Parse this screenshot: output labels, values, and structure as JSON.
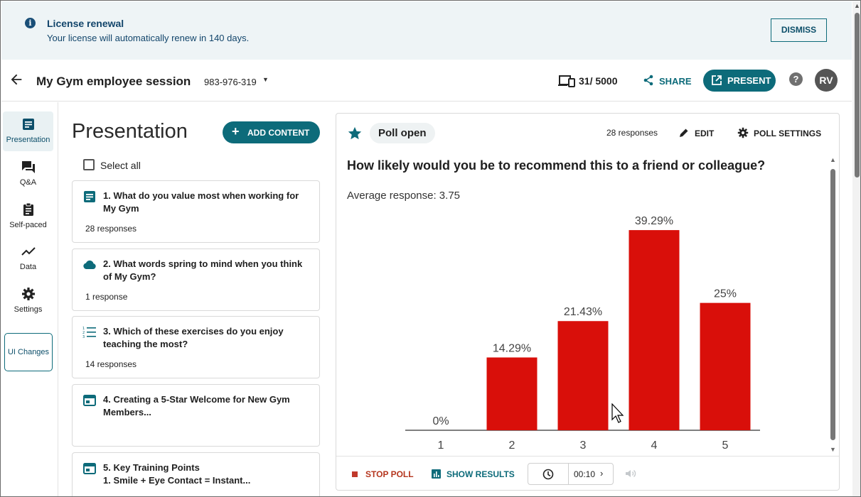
{
  "banner": {
    "title": "License renewal",
    "text": "Your license will automatically renew in 140 days.",
    "dismiss_label": "DISMISS",
    "icon": "info-icon"
  },
  "header": {
    "title": "My Gym employee session",
    "session_code": "983-976-319",
    "participants": "31/ 5000",
    "share_label": "SHARE",
    "present_label": "PRESENT",
    "help_label": "?",
    "avatar_initials": "RV"
  },
  "nav": {
    "items": [
      {
        "label": "Presentation",
        "icon": "presentation-icon"
      },
      {
        "label": "Q&A",
        "icon": "chat-icon"
      },
      {
        "label": "Self-paced",
        "icon": "clipboard-icon"
      },
      {
        "label": "Data",
        "icon": "trend-icon"
      },
      {
        "label": "Settings",
        "icon": "gear-icon"
      }
    ],
    "ui_changes": "UI Changes"
  },
  "content_list": {
    "title": "Presentation",
    "add_label": "ADD CONTENT",
    "select_all": "Select all",
    "cards": [
      {
        "title": "1. What do you value most when working for My Gym",
        "responses": "28 responses",
        "icon": "text-poll-icon"
      },
      {
        "title": "2. What words spring to mind when you think of My Gym?",
        "responses": "1 response",
        "icon": "word-cloud-icon"
      },
      {
        "title": "3. Which of these exercises do you enjoy teaching the most?",
        "responses": "14 responses",
        "icon": "ranking-list-icon"
      },
      {
        "title": "4. Creating a 5-Star Welcome for New Gym Members...",
        "responses": "",
        "icon": "slide-icon"
      },
      {
        "title": "5. Key Training Points\n1. Smile + Eye Contact = Instant...",
        "responses": "",
        "icon": "slide-icon"
      }
    ]
  },
  "poll": {
    "status": "Poll open",
    "responses": "28 responses",
    "edit_label": "EDIT",
    "settings_label": "POLL SETTINGS",
    "question": "How likely would you be to recommend this to a friend or colleague?",
    "average": "Average response: 3.75",
    "stop_label": "STOP POLL",
    "show_results_label": "SHOW RESULTS",
    "timer": "00:10",
    "bar_color": "#d90f0a",
    "accent_color": "#0d6b7a"
  },
  "chart_data": {
    "type": "bar",
    "categories": [
      "1",
      "2",
      "3",
      "4",
      "5"
    ],
    "values": [
      0,
      14.29,
      21.43,
      39.29,
      25
    ],
    "labels": [
      "0%",
      "14.29%",
      "21.43%",
      "39.29%",
      "25%"
    ],
    "ylim": [
      0,
      40
    ],
    "title": "",
    "xlabel": "",
    "ylabel": "",
    "grid": false
  }
}
